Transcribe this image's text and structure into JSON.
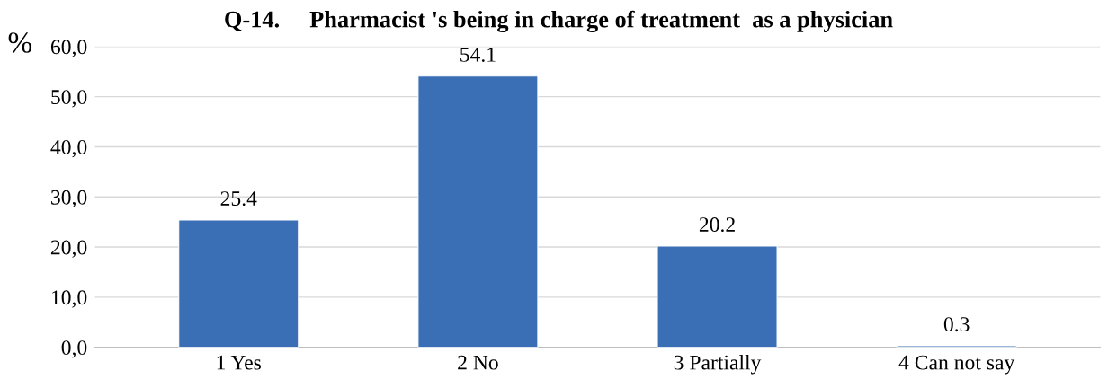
{
  "chart_data": {
    "type": "bar",
    "title": "Q-14.     Pharmacist 's being in charge of treatment  as a physician",
    "ylabel": "%",
    "categories": [
      "1 Yes",
      "2 No",
      "3 Partially",
      "4 Can not say"
    ],
    "values": [
      25.4,
      54.1,
      20.2,
      0.3
    ],
    "color": "#3a6fb5",
    "ylim": [
      0,
      60
    ],
    "yticks": [
      {
        "value": 0,
        "label": "0,0"
      },
      {
        "value": 10,
        "label": "10,0"
      },
      {
        "value": 20,
        "label": "20,0"
      },
      {
        "value": 30,
        "label": "30,0"
      },
      {
        "value": 40,
        "label": "40,0"
      },
      {
        "value": 50,
        "label": "50,0"
      },
      {
        "value": 60,
        "label": "60,0"
      }
    ],
    "grid": "y",
    "data_labels": true
  }
}
